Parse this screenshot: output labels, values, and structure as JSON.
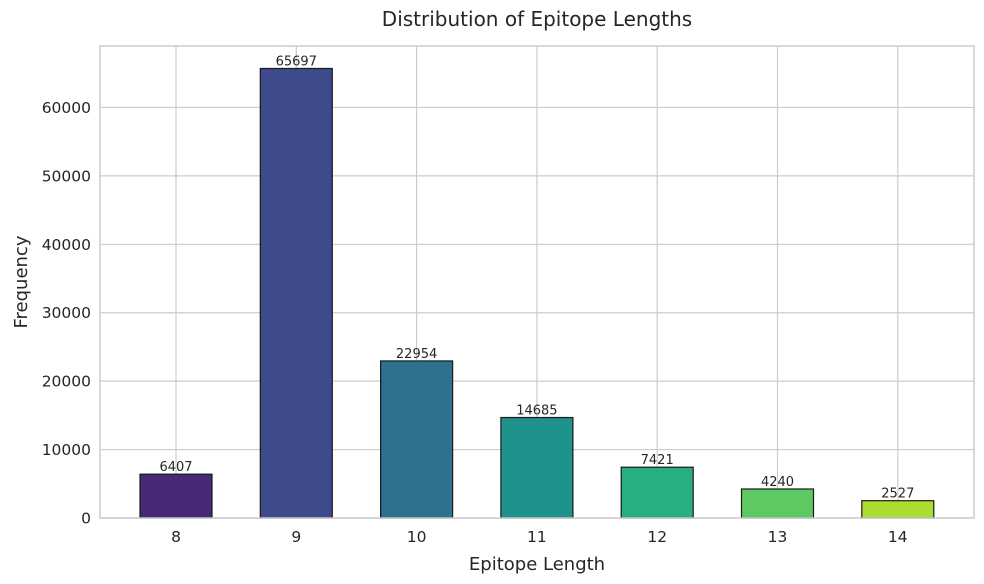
{
  "chart_data": {
    "type": "bar",
    "title": "Distribution of Epitope Lengths",
    "xlabel": "Epitope Length",
    "ylabel": "Frequency",
    "categories": [
      "8",
      "9",
      "10",
      "11",
      "12",
      "13",
      "14"
    ],
    "values": [
      6407,
      65697,
      22954,
      14685,
      7421,
      4240,
      2527
    ],
    "data_labels": [
      "6407",
      "65697",
      "22954",
      "14685",
      "7421",
      "4240",
      "2527"
    ],
    "bar_colors": [
      "#482878",
      "#3e4a89",
      "#2d718e",
      "#1f928c",
      "#29af7f",
      "#5ec962",
      "#addc30"
    ],
    "ylim": [
      0,
      68982
    ],
    "yticks": [
      0,
      10000,
      20000,
      30000,
      40000,
      50000,
      60000
    ],
    "ytick_labels": [
      "0",
      "10000",
      "20000",
      "30000",
      "40000",
      "50000",
      "60000"
    ],
    "grid": true,
    "legend": "none"
  }
}
